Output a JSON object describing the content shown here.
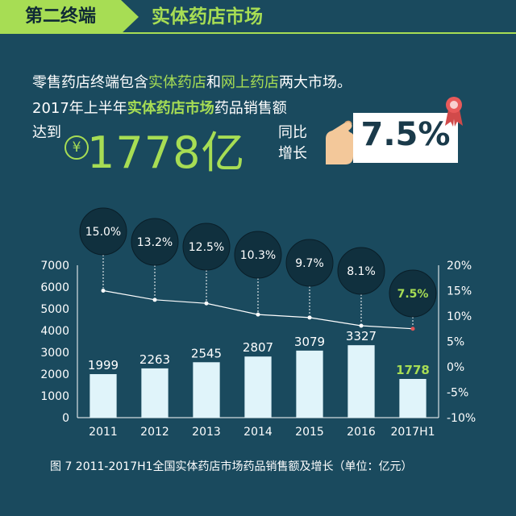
{
  "header": {
    "tag": "第二终端",
    "title": "实体药店市场"
  },
  "intro": {
    "p1_a": "零售药店终端包含",
    "p1_b": "实体药店",
    "p1_c": "和",
    "p1_d": "网上药店",
    "p1_e": "两大市场。",
    "p2_a": "2017年上半年",
    "p2_b": "实体药店市场",
    "p2_c": "药品销售额",
    "reach": "达到",
    "yen": "¥",
    "amount": "1778亿",
    "yoy": "同比增长",
    "rate": "7.5%"
  },
  "colors": {
    "bg": "#1a4a5e",
    "accent": "#a7dd54",
    "bar": "#e0f4fa",
    "line": "#ffffff",
    "bubble": "#10303e"
  },
  "chart_data": {
    "type": "bar",
    "categories": [
      "2011",
      "2012",
      "2013",
      "2014",
      "2015",
      "2016",
      "2017H1"
    ],
    "values": [
      1999,
      2263,
      2545,
      2807,
      3079,
      3327,
      1778
    ],
    "growth": [
      15.0,
      13.2,
      12.5,
      10.3,
      9.7,
      8.1,
      7.5
    ],
    "growth_labels": [
      "15.0%",
      "13.2%",
      "12.5%",
      "10.3%",
      "9.7%",
      "8.1%",
      "7.5%"
    ],
    "ylim": [
      0,
      7000
    ],
    "y_ticks": [
      "0",
      "1000",
      "2000",
      "3000",
      "4000",
      "5000",
      "6000",
      "7000"
    ],
    "y2lim": [
      -10,
      20
    ],
    "y2_ticks": [
      "-10%",
      "-5%",
      "0%",
      "5%",
      "10%",
      "15%",
      "20%"
    ],
    "grid": false
  },
  "caption": "图 7   2011-2017H1全国实体药店市场药品销售额及增长（单位：亿元）"
}
